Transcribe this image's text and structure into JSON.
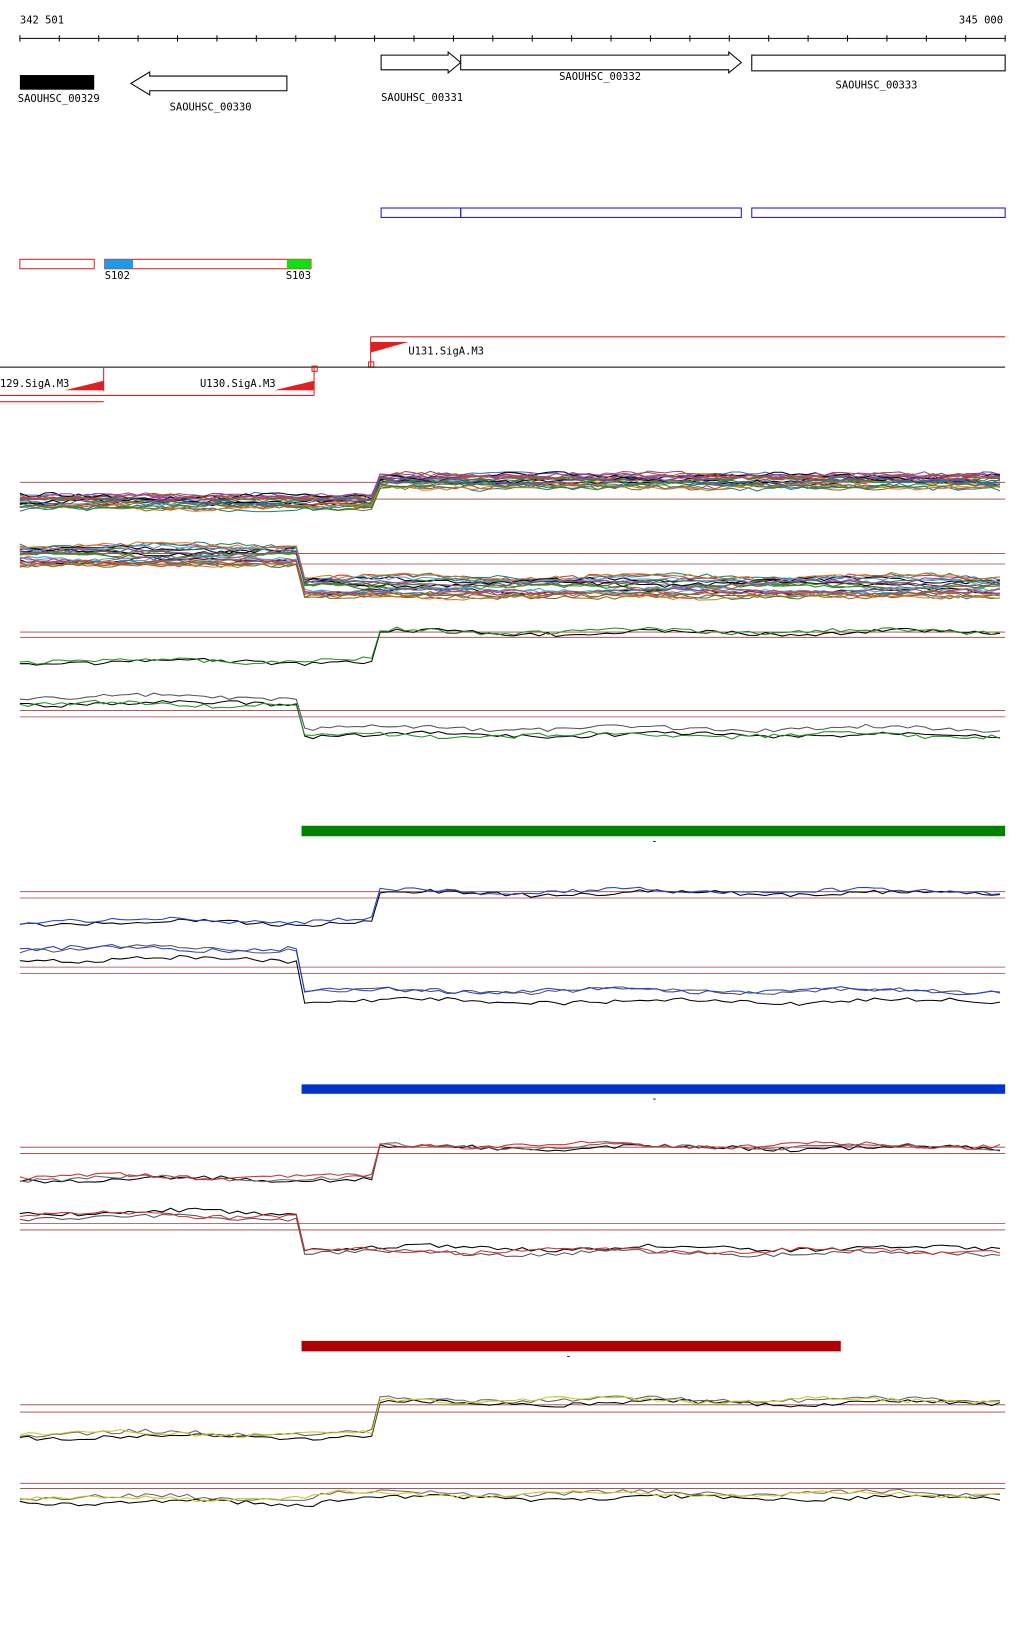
{
  "ruler": {
    "start": "342 501",
    "end": "345 000"
  },
  "genes": [
    {
      "label": "SAOUHSC_00329"
    },
    {
      "label": "SAOUHSC_00330"
    },
    {
      "label": "SAOUHSC_00331"
    },
    {
      "label": "SAOUHSC_00332"
    },
    {
      "label": "SAOUHSC_00333"
    }
  ],
  "segments": [
    {
      "label": "S102"
    },
    {
      "label": "S103"
    }
  ],
  "promoters": [
    {
      "label": "U131.SigA.M3"
    },
    {
      "label": "129.SigA.M3"
    },
    {
      "label": "U130.SigA.M3"
    }
  ],
  "bar_labels": [
    "-",
    "-",
    "-"
  ]
}
